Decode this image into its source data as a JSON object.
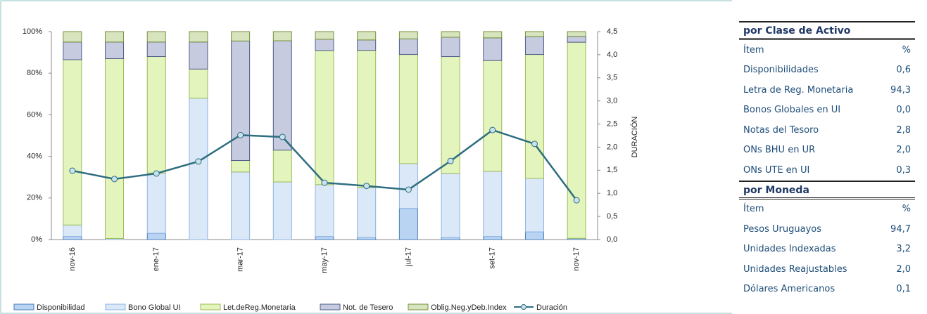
{
  "chart_data": {
    "type": "bar",
    "stacked": true,
    "categories": [
      "nov-16",
      null,
      "ene-17",
      null,
      "mar-17",
      null,
      "may-17",
      null,
      "jul-17",
      null,
      "set-17",
      null,
      "nov-17"
    ],
    "series": [
      {
        "name": "Disponibilidad",
        "color": "#b9d3f2",
        "stroke": "#4a7ebb",
        "values": [
          1.5,
          0,
          3,
          0,
          0,
          0,
          1.5,
          1,
          15,
          1,
          1.5,
          3.7,
          0.6
        ]
      },
      {
        "name": "Bono Global UI",
        "color": "#dbe8f8",
        "stroke": "#8eb4e3",
        "values": [
          5.5,
          0.5,
          29,
          68,
          32.5,
          27.7,
          24.9,
          24,
          21.5,
          30.8,
          31.3,
          25.7,
          0
        ]
      },
      {
        "name": "Let.deReg.Monetaria",
        "color": "#e4f4bd",
        "stroke": "#9bbb59",
        "values": [
          79.5,
          86.5,
          56,
          14,
          5.5,
          15.3,
          64.5,
          66,
          52.5,
          56.2,
          53.3,
          59.6,
          94.3
        ]
      },
      {
        "name": "Not. de Tesero",
        "color": "#c6cbdf",
        "stroke": "#4f5d8a",
        "values": [
          8.5,
          8,
          7,
          13,
          57.5,
          52.6,
          5.4,
          5,
          7.5,
          9.3,
          10.9,
          8.6,
          2.8
        ]
      },
      {
        "name": "Oblig.Neg.yDeb.Index",
        "color": "#d7e4bd",
        "stroke": "#76923c",
        "values": [
          5,
          5,
          5,
          5,
          4.5,
          4.4,
          3.7,
          4,
          3.5,
          2.7,
          3,
          2.4,
          2.3
        ]
      },
      {
        "name": "Duración",
        "type": "line",
        "axis": "y2",
        "color": "#2e6e80",
        "values": [
          1.49,
          1.31,
          1.43,
          1.69,
          2.26,
          2.22,
          1.23,
          1.16,
          1.08,
          1.7,
          2.37,
          2.07,
          0.85
        ]
      }
    ],
    "ylim": [
      0,
      100
    ],
    "yticks": [
      {
        "value": 0,
        "label": "0%"
      },
      {
        "value": 20,
        "label": "20%"
      },
      {
        "value": 40,
        "label": "40%"
      },
      {
        "value": 60,
        "label": "60%"
      },
      {
        "value": 80,
        "label": "80%"
      },
      {
        "value": 100,
        "label": "100%"
      }
    ],
    "y2lim": [
      0,
      4.5
    ],
    "y2ticks": [
      {
        "value": 0,
        "label": "0,0"
      },
      {
        "value": 0.5,
        "label": "0,5"
      },
      {
        "value": 1,
        "label": "1,0"
      },
      {
        "value": 1.5,
        "label": "1,5"
      },
      {
        "value": 2,
        "label": "2,0"
      },
      {
        "value": 2.5,
        "label": "2,5"
      },
      {
        "value": 3,
        "label": "3,0"
      },
      {
        "value": 3.5,
        "label": "3,5"
      },
      {
        "value": 4,
        "label": "4,0"
      },
      {
        "value": 4.5,
        "label": "4,5"
      }
    ],
    "y2label": "DURACIÓN"
  },
  "tables": [
    {
      "title": "por Clase de Activo",
      "header": [
        "Ítem",
        "%"
      ],
      "rows": [
        [
          "Disponibilidades",
          "0,6"
        ],
        [
          "Letra de Reg. Monetaria",
          "94,3"
        ],
        [
          "Bonos Globales en UI",
          "0,0"
        ],
        [
          "Notas del Tesoro",
          "2,8"
        ],
        [
          "ONs BHU en UR",
          "2,0"
        ],
        [
          "ONs UTE en UI",
          "0,3"
        ]
      ]
    },
    {
      "title": "por Moneda",
      "header": [
        "Ítem",
        "%"
      ],
      "rows": [
        [
          "Pesos Uruguayos",
          "94,7"
        ],
        [
          "Unidades Indexadas",
          "3,2"
        ],
        [
          "Unidades Reajustables",
          "2,0"
        ],
        [
          "Dólares Americanos",
          "0,1"
        ]
      ]
    }
  ]
}
